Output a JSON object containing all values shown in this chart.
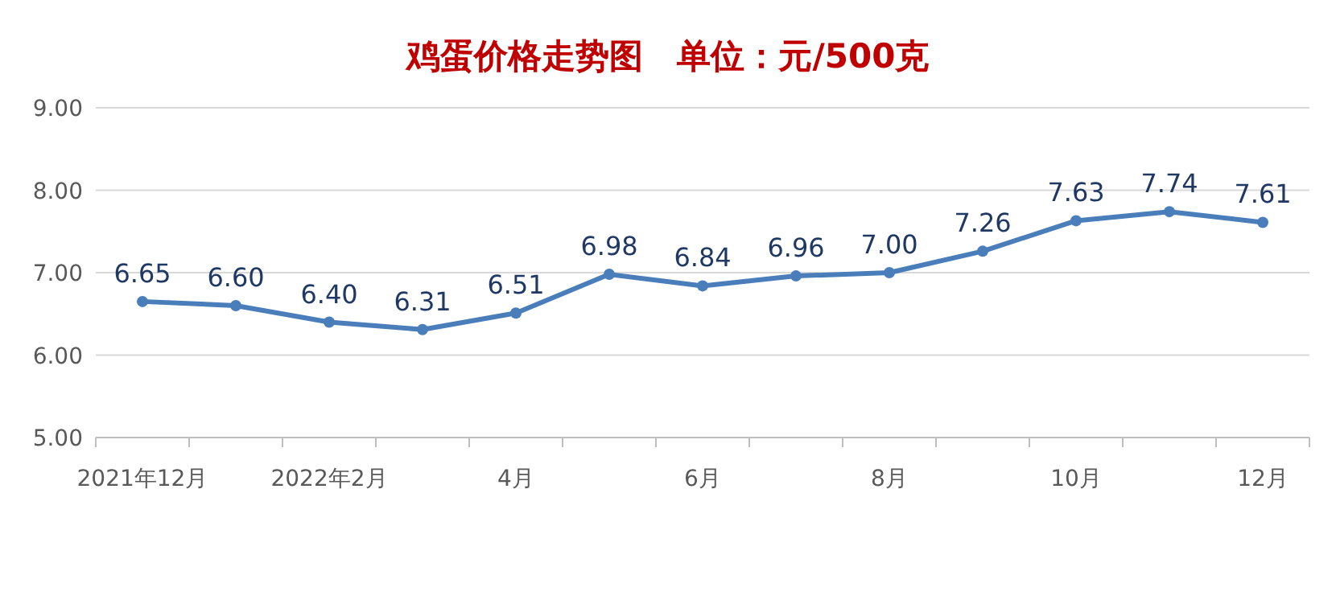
{
  "chart_data": {
    "type": "line",
    "title": "鸡蛋价格走势图　单位：元/500克",
    "categories": [
      "2021年12月",
      null,
      "2022年2月",
      null,
      "4月",
      null,
      "6月",
      null,
      "8月",
      null,
      "10月",
      null,
      "12月"
    ],
    "series": [
      {
        "color": "#4a7ebb",
        "values": [
          6.65,
          6.6,
          6.4,
          6.31,
          6.51,
          6.98,
          6.84,
          6.96,
          7.0,
          7.26,
          7.63,
          7.74,
          7.61
        ],
        "value_labels": [
          "6.65",
          "6.60",
          "6.40",
          "6.31",
          "6.51",
          "6.98",
          "6.84",
          "6.96",
          "7.00",
          "7.26",
          "7.63",
          "7.74",
          "7.61"
        ]
      }
    ],
    "ylim": [
      5,
      9
    ],
    "yticks": [
      {
        "value": 5,
        "label": "5.00"
      },
      {
        "value": 6,
        "label": "6.00"
      },
      {
        "value": 7,
        "label": "7.00"
      },
      {
        "value": 8,
        "label": "8.00"
      },
      {
        "value": 9,
        "label": "9.00"
      }
    ],
    "grid": "y",
    "marker": "circle",
    "line_style": "solid"
  }
}
